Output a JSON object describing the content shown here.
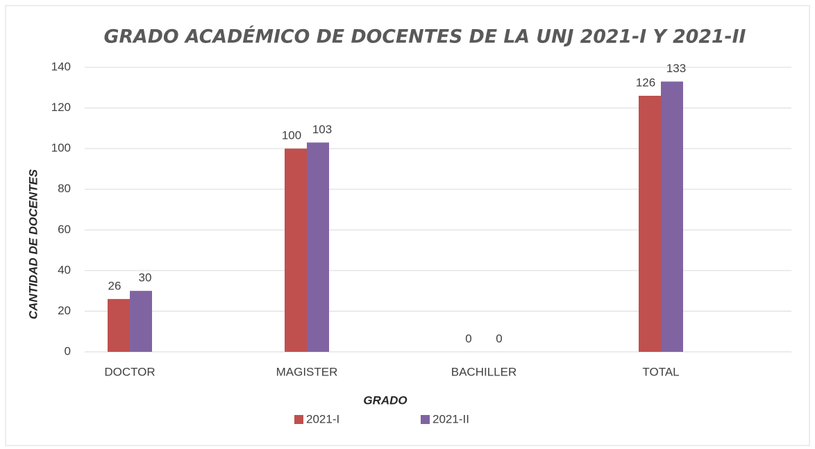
{
  "chart_data": {
    "type": "bar",
    "title": "GRADO ACADÉMICO DE DOCENTES DE LA UNJ 2021-I Y 2021-II",
    "x_label": "GRADO",
    "y_label": "CANTIDAD DE DOCENTES",
    "categories": [
      "DOCTOR",
      "MAGISTER",
      "BACHILLER",
      "TOTAL"
    ],
    "series": [
      {
        "name": "2021-I",
        "color": "#c0504d",
        "values": [
          26,
          100,
          0,
          126
        ]
      },
      {
        "name": "2021-II",
        "color": "#8064a2",
        "values": [
          30,
          103,
          0,
          133
        ]
      }
    ],
    "ylim": [
      0,
      140
    ],
    "yticks": [
      0,
      20,
      40,
      60,
      80,
      100,
      120,
      140
    ],
    "grid": true,
    "legend": "bottom"
  }
}
